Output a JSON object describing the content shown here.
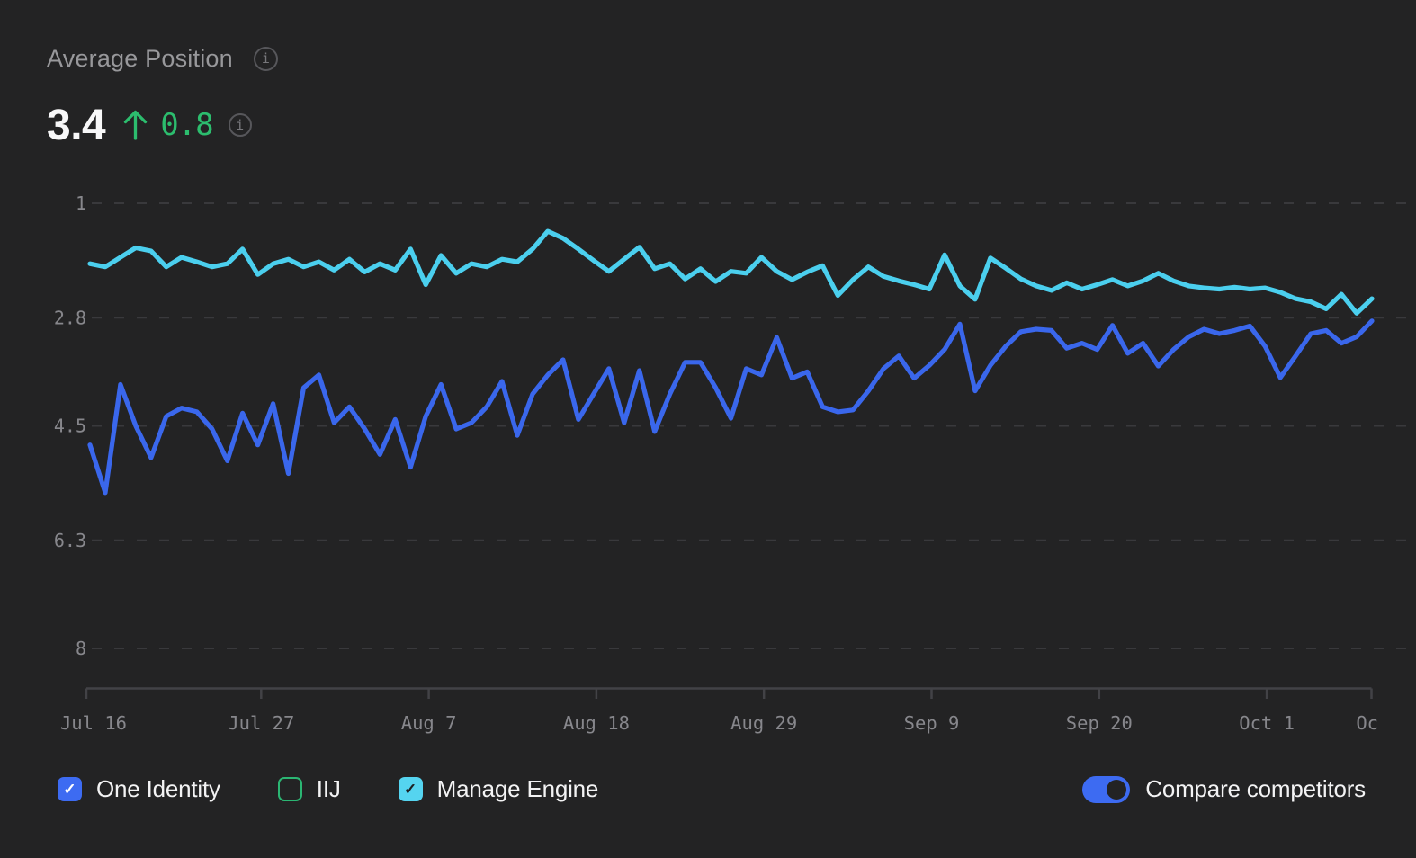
{
  "header": {
    "title": "Average Position",
    "value": "3.4",
    "delta": "0.8",
    "delta_direction": "up",
    "delta_color": "#2cbd6e",
    "info_icon_glyph": "i"
  },
  "toggle": {
    "label": "Compare competitors",
    "state": "on",
    "color": "#3d6bf2"
  },
  "colors": {
    "background": "#232324",
    "grid": "#39393c",
    "axis": "#424246",
    "tick_text": "#87878c",
    "title_text": "#98989b",
    "one_identity": "#3a67ec",
    "iij": "#2bb673",
    "manage_engine": "#4bcfee"
  },
  "chart_data": {
    "type": "line",
    "title": "Average Position",
    "grid": "horizontal-dashed",
    "legend_position": "bottom",
    "y_axis": {
      "inverted": true,
      "range": [
        1,
        8
      ],
      "ticks": [
        1,
        2.8,
        4.5,
        6.3,
        8
      ],
      "tick_labels": [
        "1",
        "2.8",
        "4.5",
        "6.3",
        "8"
      ]
    },
    "x_axis": {
      "tick_labels": [
        "Jul 16",
        "Jul 27",
        "Aug 7",
        "Aug 18",
        "Aug 29",
        "Sep 9",
        "Sep 20",
        "Oct 1"
      ],
      "clipped_last_label": "Oc",
      "unit": "day"
    },
    "series": [
      {
        "name": "One Identity",
        "color": "#3a67ec",
        "checked": true,
        "check_style": "blue-filled",
        "values": [
          4.8,
          5.55,
          3.85,
          4.5,
          5.0,
          4.35,
          4.22,
          4.28,
          4.55,
          5.05,
          4.3,
          4.8,
          4.15,
          5.25,
          3.9,
          3.7,
          4.45,
          4.2,
          4.55,
          4.95,
          4.4,
          5.15,
          4.35,
          3.85,
          4.55,
          4.45,
          4.2,
          3.8,
          4.65,
          4.0,
          3.7,
          3.46,
          4.4,
          4.0,
          3.6,
          4.45,
          3.63,
          4.59,
          4.0,
          3.5,
          3.5,
          3.9,
          4.38,
          3.6,
          3.7,
          3.11,
          3.75,
          3.65,
          4.2,
          4.28,
          4.25,
          3.95,
          3.6,
          3.4,
          3.75,
          3.55,
          3.3,
          2.9,
          3.95,
          3.55,
          3.25,
          3.02,
          2.98,
          3.0,
          3.28,
          3.2,
          3.3,
          2.92,
          3.36,
          3.2,
          3.56,
          3.3,
          3.1,
          2.98,
          3.05,
          3.0,
          2.93,
          3.25,
          3.74,
          3.4,
          3.05,
          3.0,
          3.2,
          3.1,
          2.85
        ]
      },
      {
        "name": "IIJ",
        "color": "#2bb673",
        "checked": false,
        "check_style": "green-outline",
        "values": []
      },
      {
        "name": "Manage Engine",
        "color": "#4bcfee",
        "checked": true,
        "check_style": "cyan-filled",
        "values": [
          1.95,
          2.0,
          1.85,
          1.7,
          1.75,
          2.0,
          1.85,
          1.92,
          2.0,
          1.95,
          1.72,
          2.12,
          1.95,
          1.88,
          2.0,
          1.92,
          2.05,
          1.88,
          2.08,
          1.95,
          2.05,
          1.72,
          2.28,
          1.82,
          2.1,
          1.95,
          2.0,
          1.88,
          1.92,
          1.72,
          1.44,
          1.55,
          1.72,
          1.9,
          2.07,
          1.88,
          1.69,
          2.03,
          1.95,
          2.19,
          2.03,
          2.23,
          2.07,
          2.1,
          1.85,
          2.07,
          2.2,
          2.08,
          1.98,
          2.45,
          2.2,
          2.0,
          2.15,
          2.22,
          2.28,
          2.35,
          1.81,
          2.3,
          2.51,
          1.86,
          2.02,
          2.19,
          2.3,
          2.37,
          2.25,
          2.35,
          2.28,
          2.2,
          2.3,
          2.22,
          2.1,
          2.22,
          2.3,
          2.33,
          2.35,
          2.32,
          2.35,
          2.33,
          2.4,
          2.5,
          2.55,
          2.66,
          2.43,
          2.73,
          2.5
        ]
      }
    ]
  }
}
